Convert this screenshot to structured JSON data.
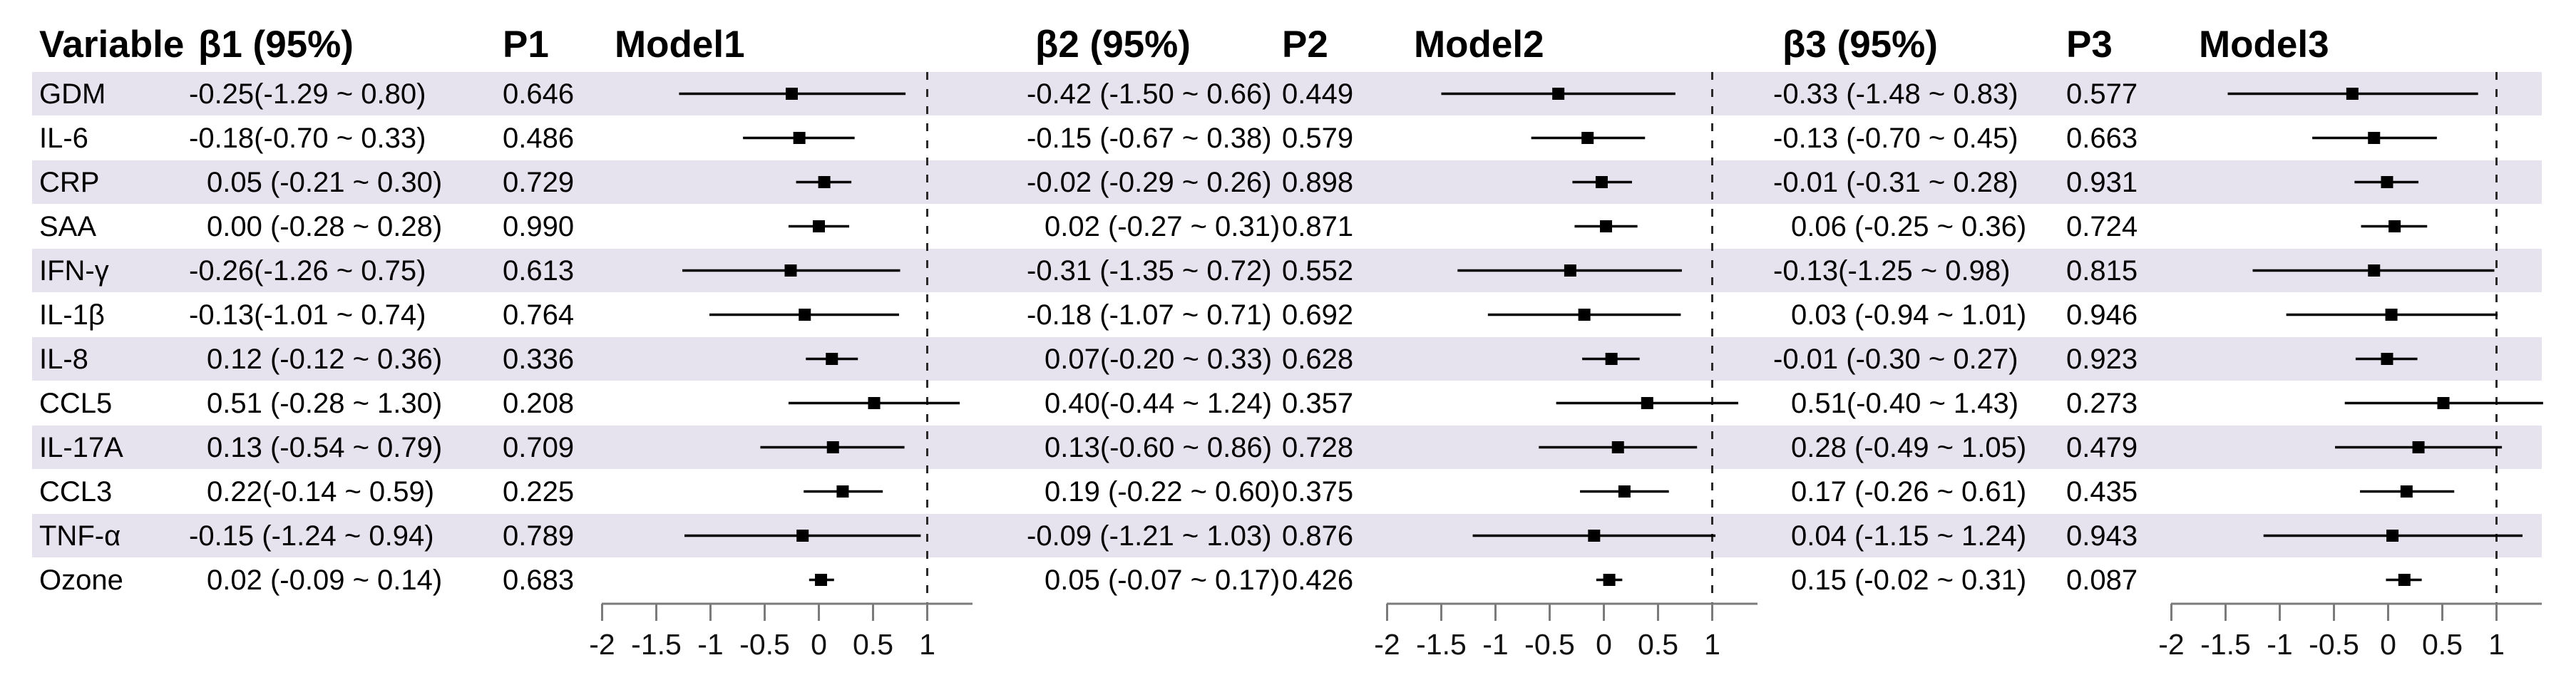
{
  "header": {
    "variable": "Variable",
    "groups": [
      {
        "beta_label": "β1 (95%)",
        "p_label": "P1",
        "model_label": "Model1"
      },
      {
        "beta_label": "β2 (95%)",
        "p_label": "P2",
        "model_label": "Model2"
      },
      {
        "beta_label": "β3 (95%)",
        "p_label": "P3",
        "model_label": "Model3"
      }
    ]
  },
  "colors": {
    "row_stripe": "#e7e3ee",
    "background": "#ffffff",
    "marker": "#000000",
    "ci_line": "#000000",
    "axis": "#7b7b7b",
    "tick": "#7b7b7b",
    "tick_label": "#111111",
    "reference_line": "#2a2a2a",
    "text": "#000000"
  },
  "chart_data": {
    "type": "forest",
    "title": "",
    "xlabel": "",
    "models": [
      "Model1",
      "Model2",
      "Model3"
    ],
    "axis": {
      "ticks": [
        -2,
        -1.5,
        -1,
        -0.5,
        0,
        0.5,
        1
      ],
      "tick_labels": [
        "-2",
        "-1.5",
        "-1",
        "-0.5",
        "0",
        "0.5",
        "1"
      ],
      "xlim": [
        -2,
        1.45
      ],
      "reference_line": 1,
      "grid": false,
      "legend_position": "none"
    },
    "rows": [
      {
        "variable": "GDM",
        "estimates": [
          {
            "beta": -0.25,
            "lower": -1.29,
            "upper": 0.8,
            "text": "-0.25(-1.29 ~ 0.80)",
            "p": "0.646"
          },
          {
            "beta": -0.42,
            "lower": -1.5,
            "upper": 0.66,
            "text": "-0.42 (-1.50 ~ 0.66)",
            "p": "0.449"
          },
          {
            "beta": -0.33,
            "lower": -1.48,
            "upper": 0.83,
            "text": "-0.33 (-1.48 ~ 0.83)",
            "p": "0.577"
          }
        ]
      },
      {
        "variable": "IL-6",
        "estimates": [
          {
            "beta": -0.18,
            "lower": -0.7,
            "upper": 0.33,
            "text": "-0.18(-0.70 ~ 0.33)",
            "p": "0.486"
          },
          {
            "beta": -0.15,
            "lower": -0.67,
            "upper": 0.38,
            "text": "-0.15 (-0.67 ~ 0.38)",
            "p": "0.579"
          },
          {
            "beta": -0.13,
            "lower": -0.7,
            "upper": 0.45,
            "text": "-0.13 (-0.70 ~ 0.45)",
            "p": "0.663"
          }
        ]
      },
      {
        "variable": "CRP",
        "estimates": [
          {
            "beta": 0.05,
            "lower": -0.21,
            "upper": 0.3,
            "text": "0.05 (-0.21 ~ 0.30)",
            "p": "0.729"
          },
          {
            "beta": -0.02,
            "lower": -0.29,
            "upper": 0.26,
            "text": "-0.02 (-0.29 ~ 0.26)",
            "p": "0.898"
          },
          {
            "beta": -0.01,
            "lower": -0.31,
            "upper": 0.28,
            "text": "-0.01 (-0.31 ~ 0.28)",
            "p": "0.931"
          }
        ]
      },
      {
        "variable": "SAA",
        "estimates": [
          {
            "beta": 0.0,
            "lower": -0.28,
            "upper": 0.28,
            "text": "0.00 (-0.28 ~ 0.28)",
            "p": "0.990"
          },
          {
            "beta": 0.02,
            "lower": -0.27,
            "upper": 0.31,
            "text": "0.02 (-0.27 ~ 0.31)",
            "p": "0.871"
          },
          {
            "beta": 0.06,
            "lower": -0.25,
            "upper": 0.36,
            "text": "0.06 (-0.25 ~ 0.36)",
            "p": "0.724"
          }
        ]
      },
      {
        "variable": "IFN-γ",
        "estimates": [
          {
            "beta": -0.26,
            "lower": -1.26,
            "upper": 0.75,
            "text": "-0.26(-1.26 ~ 0.75)",
            "p": "0.613"
          },
          {
            "beta": -0.31,
            "lower": -1.35,
            "upper": 0.72,
            "text": "-0.31 (-1.35 ~ 0.72)",
            "p": "0.552"
          },
          {
            "beta": -0.13,
            "lower": -1.25,
            "upper": 0.98,
            "text": "-0.13(-1.25 ~ 0.98)",
            "p": "0.815"
          }
        ]
      },
      {
        "variable": "IL-1β",
        "estimates": [
          {
            "beta": -0.13,
            "lower": -1.01,
            "upper": 0.74,
            "text": "-0.13(-1.01 ~ 0.74)",
            "p": "0.764"
          },
          {
            "beta": -0.18,
            "lower": -1.07,
            "upper": 0.71,
            "text": "-0.18 (-1.07 ~ 0.71)",
            "p": "0.692"
          },
          {
            "beta": 0.03,
            "lower": -0.94,
            "upper": 1.01,
            "text": "0.03 (-0.94 ~ 1.01)",
            "p": "0.946"
          }
        ]
      },
      {
        "variable": "IL-8",
        "estimates": [
          {
            "beta": 0.12,
            "lower": -0.12,
            "upper": 0.36,
            "text": "0.12 (-0.12 ~ 0.36)",
            "p": "0.336"
          },
          {
            "beta": 0.07,
            "lower": -0.2,
            "upper": 0.33,
            "text": "0.07(-0.20 ~ 0.33)",
            "p": "0.628"
          },
          {
            "beta": -0.01,
            "lower": -0.3,
            "upper": 0.27,
            "text": "-0.01 (-0.30 ~ 0.27)",
            "p": "0.923"
          }
        ]
      },
      {
        "variable": "CCL5",
        "estimates": [
          {
            "beta": 0.51,
            "lower": -0.28,
            "upper": 1.3,
            "text": "0.51 (-0.28 ~ 1.30)",
            "p": "0.208"
          },
          {
            "beta": 0.4,
            "lower": -0.44,
            "upper": 1.24,
            "text": "0.40(-0.44 ~ 1.24)",
            "p": "0.357"
          },
          {
            "beta": 0.51,
            "lower": -0.4,
            "upper": 1.43,
            "text": "0.51(-0.40 ~ 1.43)",
            "p": "0.273"
          }
        ]
      },
      {
        "variable": "IL-17A",
        "estimates": [
          {
            "beta": 0.13,
            "lower": -0.54,
            "upper": 0.79,
            "text": "0.13 (-0.54 ~ 0.79)",
            "p": "0.709"
          },
          {
            "beta": 0.13,
            "lower": -0.6,
            "upper": 0.86,
            "text": "0.13(-0.60 ~ 0.86)",
            "p": "0.728"
          },
          {
            "beta": 0.28,
            "lower": -0.49,
            "upper": 1.05,
            "text": "0.28 (-0.49 ~ 1.05)",
            "p": "0.479"
          }
        ]
      },
      {
        "variable": "CCL3",
        "estimates": [
          {
            "beta": 0.22,
            "lower": -0.14,
            "upper": 0.59,
            "text": "0.22(-0.14 ~ 0.59)",
            "p": "0.225"
          },
          {
            "beta": 0.19,
            "lower": -0.22,
            "upper": 0.6,
            "text": "0.19 (-0.22 ~ 0.60)",
            "p": "0.375"
          },
          {
            "beta": 0.17,
            "lower": -0.26,
            "upper": 0.61,
            "text": "0.17 (-0.26 ~ 0.61)",
            "p": "0.435"
          }
        ]
      },
      {
        "variable": "TNF-α",
        "estimates": [
          {
            "beta": -0.15,
            "lower": -1.24,
            "upper": 0.94,
            "text": "-0.15 (-1.24 ~ 0.94)",
            "p": "0.789"
          },
          {
            "beta": -0.09,
            "lower": -1.21,
            "upper": 1.03,
            "text": "-0.09 (-1.21 ~ 1.03)",
            "p": "0.876"
          },
          {
            "beta": 0.04,
            "lower": -1.15,
            "upper": 1.24,
            "text": "0.04 (-1.15 ~ 1.24)",
            "p": "0.943"
          }
        ]
      },
      {
        "variable": "Ozone",
        "estimates": [
          {
            "beta": 0.02,
            "lower": -0.09,
            "upper": 0.14,
            "text": "0.02 (-0.09 ~ 0.14)",
            "p": "0.683"
          },
          {
            "beta": 0.05,
            "lower": -0.07,
            "upper": 0.17,
            "text": "0.05 (-0.07 ~ 0.17)",
            "p": "0.426"
          },
          {
            "beta": 0.15,
            "lower": -0.02,
            "upper": 0.31,
            "text": "0.15 (-0.02 ~ 0.31)",
            "p": "0.087"
          }
        ]
      }
    ]
  }
}
